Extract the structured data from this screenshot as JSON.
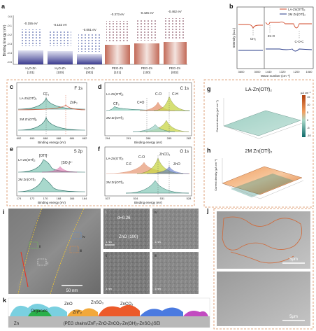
{
  "panel_a": {
    "label": "a",
    "ylabel": "Binding Energy (eV)",
    "energies": [
      "-0.155 eV",
      "-0.132 eV",
      "-0.051 eV",
      "-0.373 eV",
      "-0.426 eV",
      "-0.462 eV"
    ],
    "xlabels": [
      [
        "H₂O-Zn",
        "(101)"
      ],
      [
        "H₂O-Zn",
        "(100)"
      ],
      [
        "H₂O-Zn",
        "(002)"
      ],
      [
        "PEG-Zn",
        "(101)"
      ],
      [
        "PEG-Zn",
        "(100)"
      ],
      [
        "PEG-Zn",
        "(002)"
      ]
    ],
    "yticks": [
      "0.0",
      "-0.1",
      "-0.2",
      "-0.3",
      "-0.4",
      "-0.5"
    ],
    "bar_colors": [
      "#3b3b8f",
      "#4a4aa6",
      "#5b5bb6",
      "#a85040",
      "#c0604a",
      "#d07050"
    ]
  },
  "panel_b": {
    "label": "b",
    "legend": [
      "LA-Zn(OTf)₂",
      "2M Zn(OTf)₂"
    ],
    "ylabel": "Intensity (a.u.)",
    "xlabel": "Wave number (cm⁻¹)",
    "xticks": [
      "3600",
      "3000",
      "1440",
      "1320",
      "1200",
      "1080"
    ],
    "annotations": [
      "CH₂",
      "Zn-O",
      "C-O-C"
    ]
  },
  "panel_c": {
    "label": "c",
    "element": "F 1s",
    "rows": [
      "LA-Zn(OTf)₂",
      "2M Zn(OTf)₂"
    ],
    "peaks": [
      "CF₃",
      "ZnF₂"
    ],
    "xticks": [
      "692",
      "690",
      "688",
      "686",
      "684",
      "682"
    ],
    "xlabel": "Binding energy (eV)"
  },
  "panel_d": {
    "label": "d",
    "element": "C 1s",
    "rows": [
      "LA-Zn(OTf)₂",
      "2M Zn(OTf)₂"
    ],
    "peaks": [
      "CF₃",
      "C-O",
      "C=O",
      "C-H"
    ],
    "xticks": [
      "294",
      "291",
      "288",
      "285",
      "282"
    ],
    "xlabel": "Binding energy (eV)"
  },
  "panel_e": {
    "label": "e",
    "element": "S 2p",
    "rows": [
      "LA-Zn(OTf)₂",
      "2M Zn(OTf)₂"
    ],
    "peaks": [
      "[OTf]⁻",
      "[SO₃]²⁻"
    ],
    "xticks": [
      "174",
      "172",
      "170",
      "168",
      "166",
      "164"
    ],
    "xlabel": "Binding energy (eV)"
  },
  "panel_f": {
    "label": "f",
    "element": "O 1s",
    "rows": [
      "LA-Zn(OTf)₂",
      "2M Zn(OTf)₂"
    ],
    "peaks": [
      "C-O",
      "ZnCO₃",
      "C-F",
      "ZnO"
    ],
    "xticks": [
      "537",
      "534",
      "531",
      "528"
    ],
    "xlabel": "Binding energy (eV)"
  },
  "panel_g": {
    "label": "g",
    "title": "LA-Zn(OTf)₂",
    "zlabel": "Current density (μA cm⁻²)",
    "colorbar_title": "μA cm⁻²",
    "colorbar_ticks": [
      "15",
      "10",
      "5",
      "0",
      "-5",
      "-10"
    ]
  },
  "panel_h": {
    "label": "h",
    "title": "2M Zn(OTf)₂",
    "zlabel": "Current density (μA cm⁻²)"
  },
  "panel_i": {
    "label": "i",
    "scale_main": "50 nm",
    "sub_labels": [
      "i",
      "ii",
      "iii",
      "iv"
    ],
    "d_spacing": "d=0.26",
    "phase": "ZnO (100)",
    "scale_small": "1 nm"
  },
  "panel_j": {
    "label": "j",
    "scale_top": "5μm",
    "scale_bottom": "5μm"
  },
  "panel_k": {
    "label": "k",
    "tags": [
      "Organics",
      "ZnO",
      "ZnF₂",
      "ZnSO₃",
      "ZnCO₃"
    ],
    "substrate": "Zn",
    "caption": "(PEG chains/ZnF₂-ZnO-ZnCO₃-Zn(OH)₂-ZnSO₃)SEI"
  }
}
